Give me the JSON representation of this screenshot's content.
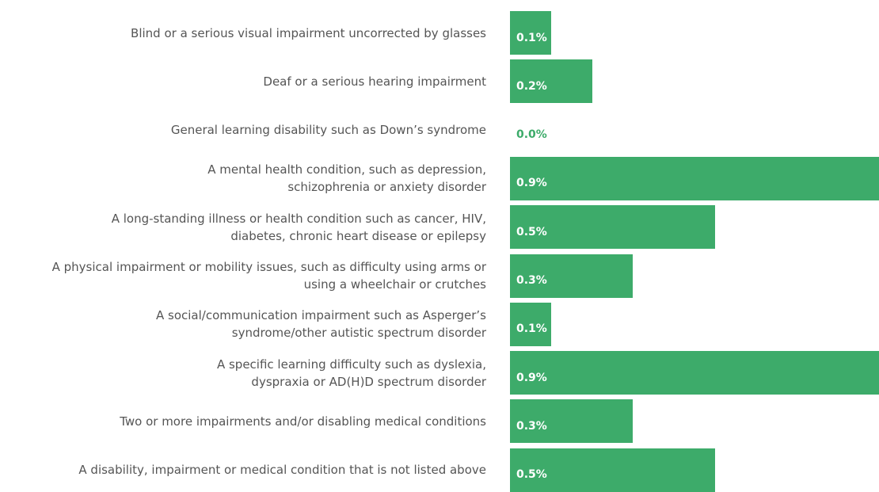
{
  "chart_data": {
    "type": "hbar",
    "categories": [
      "Blind or a serious visual impairment uncorrected by glasses",
      "Deaf or a serious hearing impairment",
      "General learning disability such as Down’s syndrome",
      "A mental health condition, such as depression,\nschizophrenia or anxiety disorder",
      "A long-standing illness or health condition such as cancer, HIV,\ndiabetes, chronic heart disease or epilepsy",
      "A physical impairment or mobility issues, such as difficulty using arms or\nusing a wheelchair or crutches",
      "A social/communication impairment such as Asperger’s\nsyndrome/other autistic spectrum disorder",
      "A specific learning difficulty such as dyslexia,\ndyspraxia or AD(H)D spectrum disorder",
      "Two or more impairments and/or disabling medical conditions",
      "A disability, impairment or medical condition that is not listed above"
    ],
    "values": [
      0.1,
      0.2,
      0.0,
      0.9,
      0.5,
      0.3,
      0.1,
      0.9,
      0.3,
      0.5
    ],
    "value_labels": [
      "0.1%",
      "0.2%",
      "0.0%",
      "0.9%",
      "0.5%",
      "0.3%",
      "0.1%",
      "0.9%",
      "0.3%",
      "0.5%"
    ],
    "color": "#3dab6a",
    "xlim": [
      0,
      0.9
    ]
  }
}
